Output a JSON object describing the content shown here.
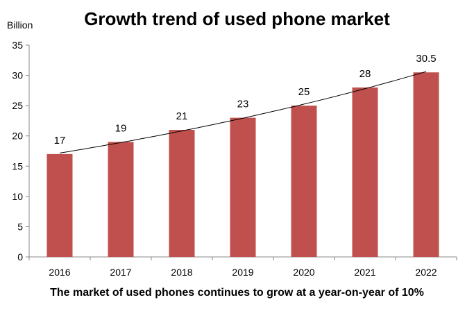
{
  "chart_data": {
    "type": "bar",
    "title": "Growth trend of used phone market",
    "ylabel": "Billion",
    "xlabel": "The market of used phones continues to grow at a year-on-year of 10%",
    "categories": [
      "2016",
      "2017",
      "2018",
      "2019",
      "2020",
      "2021",
      "2022"
    ],
    "values": [
      17,
      19,
      21,
      23,
      25,
      28,
      30.5
    ],
    "data_labels": [
      "17",
      "19",
      "21",
      "23",
      "25",
      "28",
      "30.5"
    ],
    "ylim": [
      0,
      35
    ],
    "yticks": [
      "0",
      "5",
      "10",
      "15",
      "20",
      "25",
      "30",
      "35"
    ],
    "trendline": true,
    "grid": false,
    "bar_color": "#c0504d",
    "trend_color": "#000000"
  }
}
